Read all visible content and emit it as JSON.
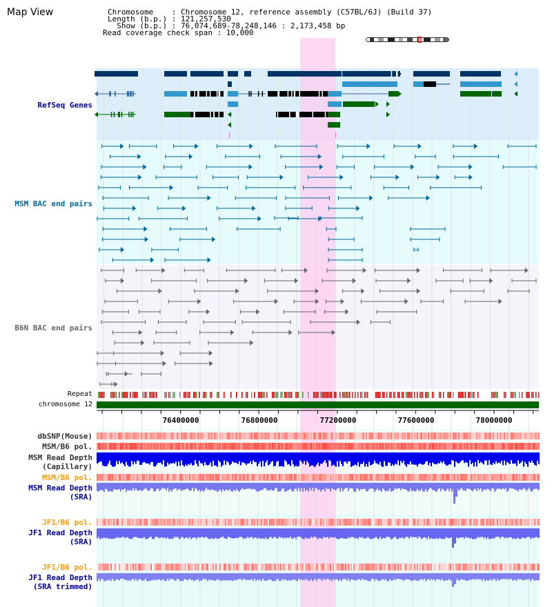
{
  "header": {
    "view_title": "Map View",
    "lines": [
      "Chromosome    : Chromosome 12, reference assembly (C57BL/6J) (Build 37)",
      "Length (b.p.) : 121,257,530",
      "  Show (b.p.) : 76,074,689-78,248,146 : 2,173,458 bp",
      "Read coverage check span : 10,000"
    ]
  },
  "tracks": {
    "refseq": "RefSeq Genes",
    "msm_bac": "MSM BAC end pairs",
    "b6n_bac": "B6N BAC end pairs",
    "repeat": "Repeat",
    "chromosome": "chromosome 12",
    "dbsnp": "dbSNP(Mouse)",
    "msm_b6_pol_1": "MSM/B6 pol.",
    "msm_read_depth_cap_1": "MSM Read Depth",
    "msm_read_depth_cap_2": "(Capillary)",
    "msm_b6_pol_2": "MSM/B6 pol.",
    "msm_read_depth_sra_1": "MSM Read Depth",
    "msm_read_depth_sra_2": "(SRA)",
    "jf1_b6_pol_1": "JF1/B6 pol.",
    "jf1_read_depth_sra_1": "JF1 Read Depth",
    "jf1_read_depth_sra_2": "(SRA)",
    "jf1_b6_pol_2": "JF1/B6 pol.",
    "jf1_read_depth_trim_1": "JF1 Read Depth",
    "jf1_read_depth_trim_2": "(SRA trimmed)"
  },
  "axis": {
    "ticks": [
      "76400000",
      "76800000",
      "77200000",
      "77600000",
      "78000000"
    ]
  },
  "colors": {
    "label_dark_blue": "#000099",
    "label_teal": "#006699",
    "label_gray": "#666666",
    "label_orange": "#ff9900",
    "refseq_bg": "#dbeefa",
    "msm_bg": "#e6fcfc",
    "b6n_bg": "#f4f4fa",
    "highlight": "#ffccf0",
    "chromosome_green": "#006600"
  }
}
